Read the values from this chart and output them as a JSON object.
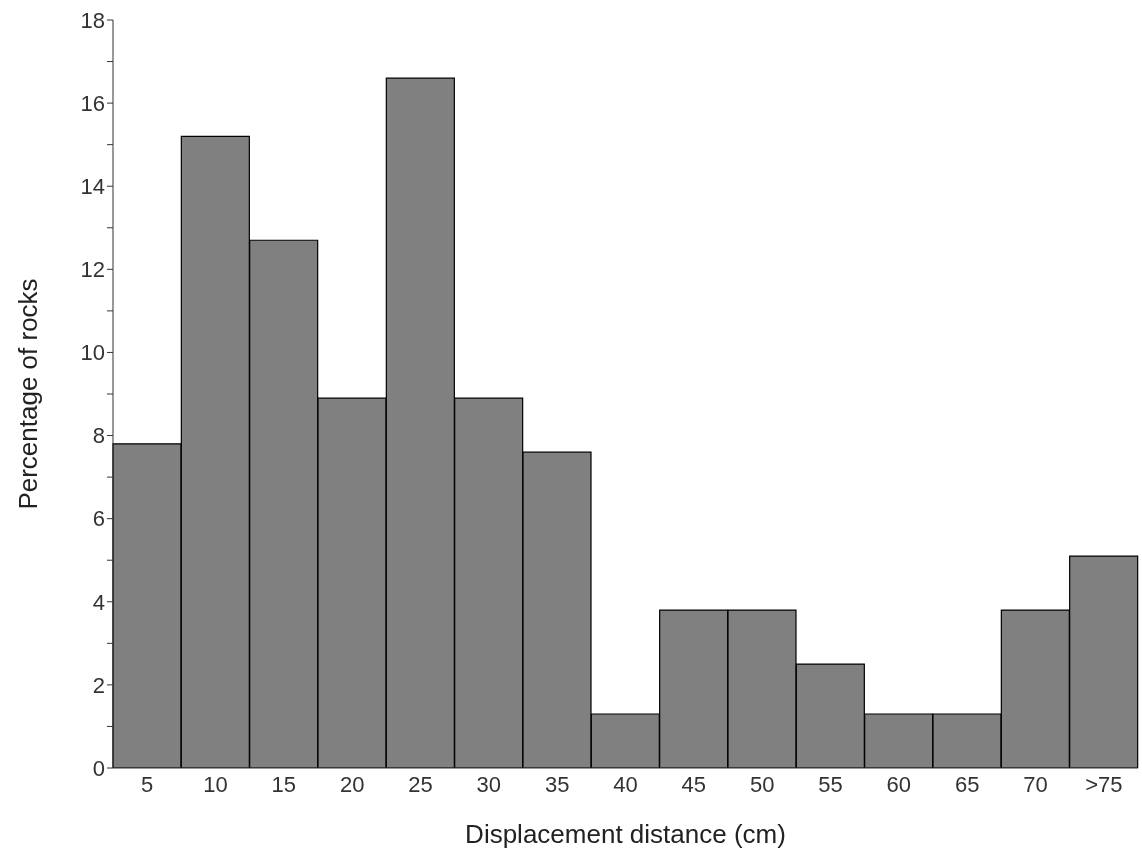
{
  "chart_data": {
    "type": "bar",
    "xlabel": "Displacement distance (cm)",
    "ylabel": "Percentage of rocks",
    "categories": [
      "5",
      "10",
      "15",
      "20",
      "25",
      "30",
      "35",
      "40",
      "45",
      "50",
      "55",
      "60",
      "65",
      "70",
      ">75"
    ],
    "values": [
      7.8,
      15.2,
      12.7,
      8.9,
      16.6,
      8.9,
      7.6,
      1.3,
      3.8,
      3.8,
      2.5,
      1.3,
      1.3,
      3.8,
      5.1
    ],
    "color": "#808080",
    "ylim": [
      0,
      18
    ],
    "yticks": [
      0,
      {
        "value": 1,
        "label": null
      },
      2,
      {
        "value": 3,
        "label": null
      },
      4,
      {
        "value": 5,
        "label": null
      },
      6,
      {
        "value": 7,
        "label": null
      },
      8,
      {
        "value": 9,
        "label": null
      },
      10,
      {
        "value": 11,
        "label": null
      },
      12,
      {
        "value": 13,
        "label": null
      },
      14,
      {
        "value": 15,
        "label": null
      },
      16,
      {
        "value": 17,
        "label": null
      },
      18
    ],
    "grid": false,
    "legend": false
  }
}
